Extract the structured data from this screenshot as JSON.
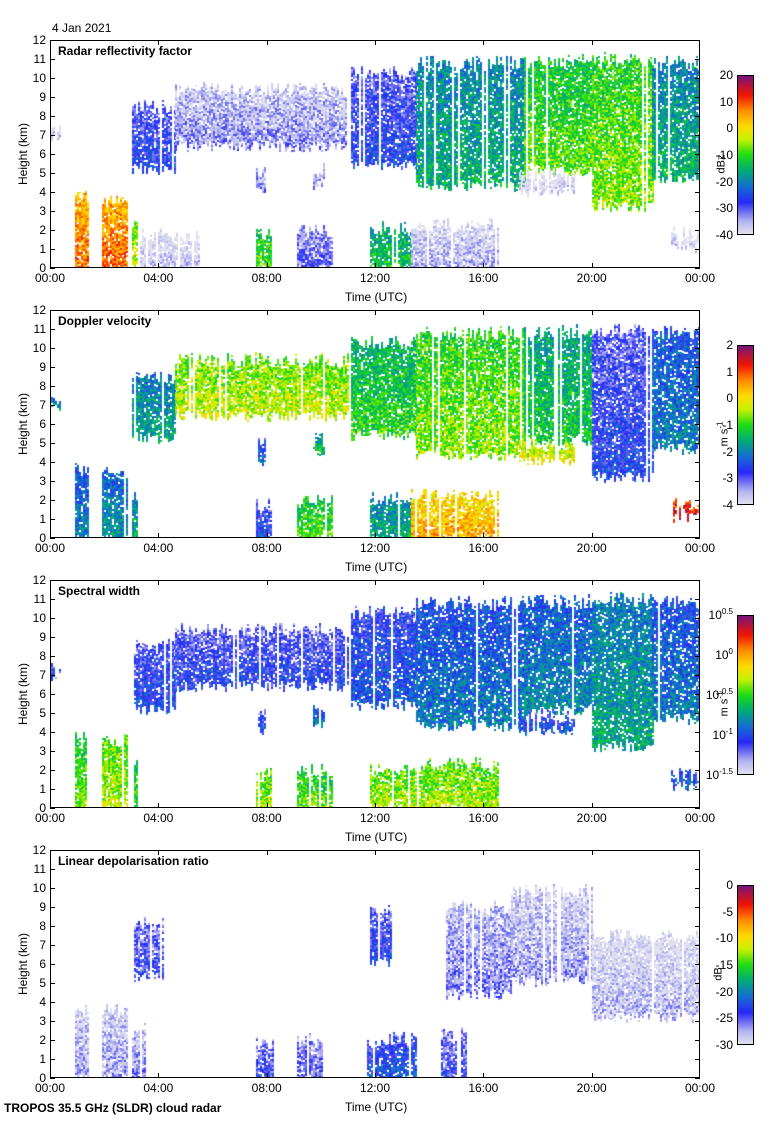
{
  "header": {
    "date": "4 Jan 2021"
  },
  "footer": {
    "instrument": "TROPOS 35.5 GHz (SLDR) cloud radar"
  },
  "chart_data": [
    {
      "type": "heatmap",
      "title": "Radar reflectivity factor",
      "xlabel": "Time (UTC)",
      "ylabel": "Height (km)",
      "xlim": [
        0,
        24
      ],
      "ylim": [
        0,
        12
      ],
      "x_tick_labels": [
        "00:00",
        "04:00",
        "08:00",
        "12:00",
        "16:00",
        "20:00",
        "00:00"
      ],
      "y_tick_labels": [
        "0",
        "1",
        "2",
        "3",
        "4",
        "5",
        "6",
        "7",
        "8",
        "9",
        "10",
        "11",
        "12"
      ],
      "colorbar": {
        "label": "dBz",
        "range": [
          -40,
          20
        ],
        "tick_labels": [
          "20",
          "10",
          "0",
          "-10",
          "-20",
          "-30",
          "-40"
        ]
      },
      "grid": false,
      "features": [
        {
          "t0": 0.0,
          "t1": 0.3,
          "b": 6.9,
          "h": 7.3,
          "v": -37
        },
        {
          "t0": 3.0,
          "t1": 4.6,
          "b": 5.3,
          "h": 8.5,
          "v": -26
        },
        {
          "t0": 4.6,
          "t1": 11.0,
          "b": 6.5,
          "h": 9.4,
          "v": -33
        },
        {
          "t0": 7.6,
          "t1": 7.9,
          "b": 4.2,
          "h": 5.2,
          "v": -32
        },
        {
          "t0": 9.7,
          "t1": 10.1,
          "b": 4.5,
          "h": 5.2,
          "v": -33
        },
        {
          "t0": 11.1,
          "t1": 13.5,
          "b": 5.5,
          "h": 10.3,
          "v": -26
        },
        {
          "t0": 13.5,
          "t1": 17.5,
          "b": 4.4,
          "h": 10.8,
          "v": -15
        },
        {
          "t0": 17.5,
          "t1": 20.0,
          "b": 5.2,
          "h": 10.9,
          "v": -8
        },
        {
          "t0": 20.0,
          "t1": 22.2,
          "b": 3.3,
          "h": 11.0,
          "v": -6
        },
        {
          "t0": 22.2,
          "t1": 24.0,
          "b": 4.8,
          "h": 10.8,
          "v": -15
        },
        {
          "t0": 17.3,
          "t1": 19.3,
          "b": 4.1,
          "h": 4.9,
          "v": -38
        },
        {
          "t0": 0.9,
          "t1": 1.4,
          "b": 0.0,
          "h": 3.7,
          "v": 8
        },
        {
          "t0": 1.9,
          "t1": 2.8,
          "b": 0.0,
          "h": 3.6,
          "v": 9
        },
        {
          "t0": 3.0,
          "t1": 3.2,
          "b": 0.0,
          "h": 2.4,
          "v": -3
        },
        {
          "t0": 3.3,
          "t1": 5.5,
          "b": 0.0,
          "h": 1.8,
          "v": -37
        },
        {
          "t0": 7.6,
          "t1": 8.1,
          "b": 0.0,
          "h": 1.8,
          "v": -8
        },
        {
          "t0": 9.1,
          "t1": 10.4,
          "b": 0.0,
          "h": 2.0,
          "v": -30
        },
        {
          "t0": 11.8,
          "t1": 13.3,
          "b": 0.0,
          "h": 2.1,
          "v": -12
        },
        {
          "t0": 13.3,
          "t1": 16.5,
          "b": 0.0,
          "h": 2.3,
          "v": -35
        },
        {
          "t0": 22.9,
          "t1": 24.0,
          "b": 1.2,
          "h": 1.8,
          "v": -38
        }
      ]
    },
    {
      "type": "heatmap",
      "title": "Doppler velocity",
      "xlabel": "Time (UTC)",
      "ylabel": "Height (km)",
      "xlim": [
        0,
        24
      ],
      "ylim": [
        0,
        12
      ],
      "x_tick_labels": [
        "00:00",
        "04:00",
        "08:00",
        "12:00",
        "16:00",
        "20:00",
        "00:00"
      ],
      "y_tick_labels": [
        "0",
        "1",
        "2",
        "3",
        "4",
        "5",
        "6",
        "7",
        "8",
        "9",
        "10",
        "11",
        "12"
      ],
      "colorbar": {
        "label": "m s-1",
        "range": [
          -4,
          2
        ],
        "tick_labels": [
          "2",
          "1",
          "0",
          "-1",
          "-2",
          "-3",
          "-4"
        ]
      },
      "grid": false,
      "features": [
        {
          "t0": 0.0,
          "t1": 0.3,
          "b": 6.9,
          "h": 7.3,
          "v": -1.5
        },
        {
          "t0": 3.0,
          "t1": 4.6,
          "b": 5.3,
          "h": 8.5,
          "v": -1.6
        },
        {
          "t0": 4.6,
          "t1": 11.0,
          "b": 6.5,
          "h": 9.4,
          "v": -0.3
        },
        {
          "t0": 7.6,
          "t1": 7.9,
          "b": 4.2,
          "h": 5.2,
          "v": -2.3
        },
        {
          "t0": 9.7,
          "t1": 10.1,
          "b": 4.5,
          "h": 5.2,
          "v": -1.2
        },
        {
          "t0": 11.1,
          "t1": 13.5,
          "b": 5.5,
          "h": 10.3,
          "v": -1.0
        },
        {
          "t0": 13.5,
          "t1": 17.5,
          "b": 4.4,
          "h": 10.8,
          "v": -0.6
        },
        {
          "t0": 17.5,
          "t1": 20.0,
          "b": 5.2,
          "h": 10.9,
          "v": -1.2
        },
        {
          "t0": 20.0,
          "t1": 22.2,
          "b": 3.3,
          "h": 11.0,
          "v": -2.6
        },
        {
          "t0": 22.2,
          "t1": 24.0,
          "b": 4.8,
          "h": 10.8,
          "v": -2.0
        },
        {
          "t0": 17.3,
          "t1": 19.3,
          "b": 4.1,
          "h": 4.9,
          "v": 0.0
        },
        {
          "t0": 0.9,
          "t1": 1.4,
          "b": 0.0,
          "h": 3.7,
          "v": -2.0
        },
        {
          "t0": 1.9,
          "t1": 2.8,
          "b": 0.0,
          "h": 3.6,
          "v": -1.8
        },
        {
          "t0": 3.0,
          "t1": 3.2,
          "b": 0.0,
          "h": 2.4,
          "v": -1.5
        },
        {
          "t0": 7.6,
          "t1": 8.1,
          "b": 0.0,
          "h": 1.8,
          "v": -2.5
        },
        {
          "t0": 9.1,
          "t1": 10.4,
          "b": 0.0,
          "h": 2.0,
          "v": -0.8
        },
        {
          "t0": 11.8,
          "t1": 13.3,
          "b": 0.0,
          "h": 2.1,
          "v": -1.5
        },
        {
          "t0": 13.3,
          "t1": 16.5,
          "b": 0.0,
          "h": 2.3,
          "v": 0.5
        },
        {
          "t0": 22.9,
          "t1": 24.0,
          "b": 1.2,
          "h": 1.8,
          "v": 1.5
        }
      ]
    },
    {
      "type": "heatmap",
      "title": "Spectral width",
      "xlabel": "Time (UTC)",
      "ylabel": "Height (km)",
      "xlim": [
        0,
        24
      ],
      "ylim": [
        0,
        12
      ],
      "x_tick_labels": [
        "00:00",
        "04:00",
        "08:00",
        "12:00",
        "16:00",
        "20:00",
        "00:00"
      ],
      "y_tick_labels": [
        "0",
        "1",
        "2",
        "3",
        "4",
        "5",
        "6",
        "7",
        "8",
        "9",
        "10",
        "11",
        "12"
      ],
      "colorbar": {
        "label": "m s-1",
        "scale": "log10",
        "range": [
          -1.5,
          0.5
        ],
        "tick_labels": [
          "10^0.5",
          "10^0",
          "10^-0.5",
          "10^-1",
          "10^-1.5"
        ]
      },
      "grid": false,
      "features": [
        {
          "t0": 0.0,
          "t1": 0.3,
          "b": 6.9,
          "h": 7.3,
          "v": -1.0
        },
        {
          "t0": 3.0,
          "t1": 4.6,
          "b": 5.3,
          "h": 8.5,
          "v": -1.0
        },
        {
          "t0": 4.6,
          "t1": 11.0,
          "b": 6.5,
          "h": 9.4,
          "v": -1.05
        },
        {
          "t0": 7.6,
          "t1": 7.9,
          "b": 4.2,
          "h": 5.2,
          "v": -1.0
        },
        {
          "t0": 9.7,
          "t1": 10.1,
          "b": 4.5,
          "h": 5.2,
          "v": -0.85
        },
        {
          "t0": 11.1,
          "t1": 13.5,
          "b": 5.5,
          "h": 10.3,
          "v": -0.95
        },
        {
          "t0": 13.5,
          "t1": 17.5,
          "b": 4.4,
          "h": 10.8,
          "v": -0.85
        },
        {
          "t0": 17.5,
          "t1": 20.0,
          "b": 5.2,
          "h": 10.9,
          "v": -0.8
        },
        {
          "t0": 20.0,
          "t1": 22.2,
          "b": 3.3,
          "h": 11.0,
          "v": -0.7
        },
        {
          "t0": 22.2,
          "t1": 24.0,
          "b": 4.8,
          "h": 10.8,
          "v": -0.85
        },
        {
          "t0": 17.3,
          "t1": 19.3,
          "b": 4.1,
          "h": 4.9,
          "v": -0.95
        },
        {
          "t0": 0.9,
          "t1": 1.4,
          "b": 0.0,
          "h": 3.7,
          "v": -0.4
        },
        {
          "t0": 1.9,
          "t1": 2.8,
          "b": 0.0,
          "h": 3.6,
          "v": -0.3
        },
        {
          "t0": 3.0,
          "t1": 3.2,
          "b": 0.0,
          "h": 2.4,
          "v": -0.45
        },
        {
          "t0": 7.6,
          "t1": 8.1,
          "b": 0.0,
          "h": 1.8,
          "v": -0.3
        },
        {
          "t0": 9.1,
          "t1": 10.4,
          "b": 0.0,
          "h": 2.0,
          "v": -0.4
        },
        {
          "t0": 11.8,
          "t1": 13.3,
          "b": 0.0,
          "h": 2.1,
          "v": -0.3
        },
        {
          "t0": 13.3,
          "t1": 16.5,
          "b": 0.0,
          "h": 2.3,
          "v": -0.3
        },
        {
          "t0": 22.9,
          "t1": 24.0,
          "b": 1.2,
          "h": 1.8,
          "v": -0.9
        }
      ]
    },
    {
      "type": "heatmap",
      "title": "Linear depolarisation ratio",
      "xlabel": "Time (UTC)",
      "ylabel": "Height (km)",
      "xlim": [
        0,
        24
      ],
      "ylim": [
        0,
        12
      ],
      "x_tick_labels": [
        "00:00",
        "04:00",
        "08:00",
        "12:00",
        "16:00",
        "20:00",
        "00:00"
      ],
      "y_tick_labels": [
        "0",
        "1",
        "2",
        "3",
        "4",
        "5",
        "6",
        "7",
        "8",
        "9",
        "10",
        "11",
        "12"
      ],
      "colorbar": {
        "label": "dB",
        "range": [
          -30,
          0
        ],
        "tick_labels": [
          "0",
          "-5",
          "-10",
          "-15",
          "-20",
          "-25",
          "-30"
        ]
      },
      "grid": false,
      "features": [
        {
          "t0": 3.1,
          "t1": 4.1,
          "b": 5.4,
          "h": 8.1,
          "v": -24
        },
        {
          "t0": 11.8,
          "t1": 12.6,
          "b": 6.2,
          "h": 8.8,
          "v": -23
        },
        {
          "t0": 14.6,
          "t1": 17.0,
          "b": 4.5,
          "h": 9.0,
          "v": -26
        },
        {
          "t0": 17.0,
          "t1": 20.0,
          "b": 5.2,
          "h": 9.9,
          "v": -27
        },
        {
          "t0": 20.0,
          "t1": 24.0,
          "b": 3.3,
          "h": 7.5,
          "v": -28
        },
        {
          "t0": 0.9,
          "t1": 1.4,
          "b": 0.0,
          "h": 3.6,
          "v": -27
        },
        {
          "t0": 1.9,
          "t1": 2.8,
          "b": 0.0,
          "h": 3.6,
          "v": -27
        },
        {
          "t0": 3.0,
          "t1": 3.5,
          "b": 0.0,
          "h": 2.6,
          "v": -26
        },
        {
          "t0": 7.6,
          "t1": 8.2,
          "b": 0.0,
          "h": 1.9,
          "v": -24
        },
        {
          "t0": 9.1,
          "t1": 10.0,
          "b": 0.0,
          "h": 2.0,
          "v": -25
        },
        {
          "t0": 11.7,
          "t1": 13.5,
          "b": 0.0,
          "h": 2.1,
          "v": -22
        },
        {
          "t0": 14.4,
          "t1": 15.3,
          "b": 0.0,
          "h": 2.3,
          "v": -24
        }
      ]
    }
  ]
}
